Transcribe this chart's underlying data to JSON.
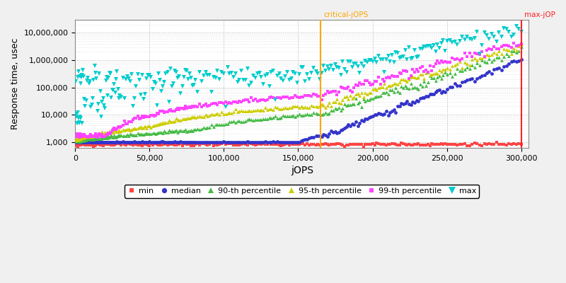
{
  "xlabel": "jOPS",
  "ylabel": "Response time, usec",
  "critical_jops": 165000,
  "max_jops": 300000,
  "xlim": [
    0,
    305000
  ],
  "ylim_log": [
    600,
    30000000
  ],
  "x_ticks": [
    0,
    50000,
    100000,
    150000,
    200000,
    250000,
    300000
  ],
  "y_ticks": [
    1000,
    10000,
    100000,
    1000000,
    10000000
  ],
  "background_color": "#f0f0f0",
  "plot_bg_color": "#ffffff",
  "grid_color": "#aaaaaa",
  "critical_line_color": "#ffa500",
  "max_line_color": "#ff2222",
  "series": {
    "min": {
      "color": "#ff4444",
      "marker": "s",
      "markersize": 2.5,
      "label": "min",
      "zorder": 3
    },
    "median": {
      "color": "#3333cc",
      "marker": "o",
      "markersize": 3.5,
      "label": "median",
      "zorder": 3
    },
    "p90": {
      "color": "#44bb44",
      "marker": "^",
      "markersize": 3.5,
      "label": "90-th percentile",
      "zorder": 3
    },
    "p95": {
      "color": "#cccc00",
      "marker": "^",
      "markersize": 3.5,
      "label": "95-th percentile",
      "zorder": 3
    },
    "p99": {
      "color": "#ff44ff",
      "marker": "s",
      "markersize": 3,
      "label": "99-th percentile",
      "zorder": 3
    },
    "max": {
      "color": "#00cccc",
      "marker": "v",
      "markersize": 4.5,
      "label": "max",
      "zorder": 3
    }
  }
}
